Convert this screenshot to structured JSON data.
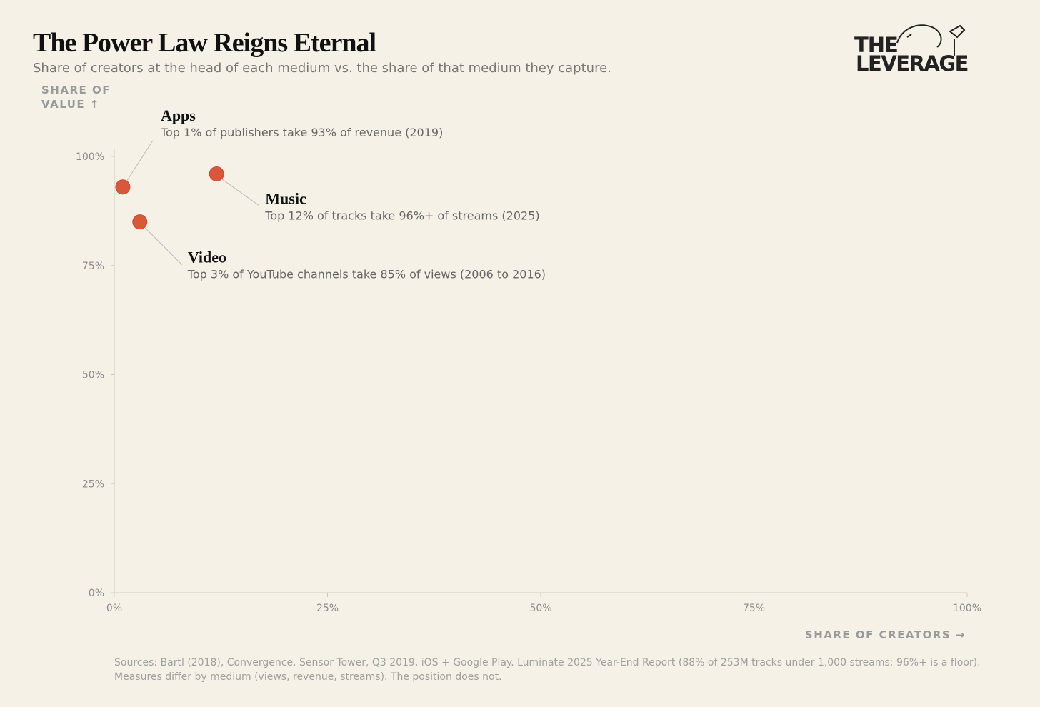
{
  "chart_data": {
    "type": "scatter",
    "title": "The Power Law Reigns Eternal",
    "subtitle": "Share of creators at the head of each medium vs. the share of that medium they capture.",
    "logo": [
      "THE",
      "LEVERAGE"
    ],
    "y_label": [
      "SHARE OF",
      "VALUE ↑"
    ],
    "x_label": "SHARE OF CREATORS →",
    "color": "#d9573a",
    "points": [
      {
        "label": "Apps",
        "description": "Top 1% of publishers take 93% of revenue (2019)",
        "x": 1,
        "y": 93
      },
      {
        "label": "Music",
        "description": "Top 12% of tracks take 96%+ of streams (2025)",
        "x": 12,
        "y": 96
      },
      {
        "label": "Video",
        "description": "Top 3% of YouTube channels take 85% of views (2006 to 2016)",
        "x": 3,
        "y": 85
      }
    ],
    "xlim": [
      0,
      100
    ],
    "ylim": [
      0,
      100
    ],
    "xticks": [
      {
        "value": 0,
        "label": "0%"
      },
      {
        "value": 25,
        "label": "25%"
      },
      {
        "value": 50,
        "label": "50%"
      },
      {
        "value": 75,
        "label": "75%"
      },
      {
        "value": 100,
        "label": "100%"
      }
    ],
    "yticks": [
      {
        "value": 0,
        "label": "0%"
      },
      {
        "value": 25,
        "label": "25%"
      },
      {
        "value": 50,
        "label": "50%"
      },
      {
        "value": 75,
        "label": "75%"
      },
      {
        "value": 100,
        "label": "100%"
      }
    ],
    "sources": [
      "Sources: Bärtl (2018), Convergence. Sensor Tower, Q3 2019, iOS + Google Play. Luminate 2025 Year-End Report (88% of 253M tracks under 1,000 streams; 96%+ is a floor).",
      "Measures differ by medium (views, revenue, streams). The position does not."
    ]
  }
}
